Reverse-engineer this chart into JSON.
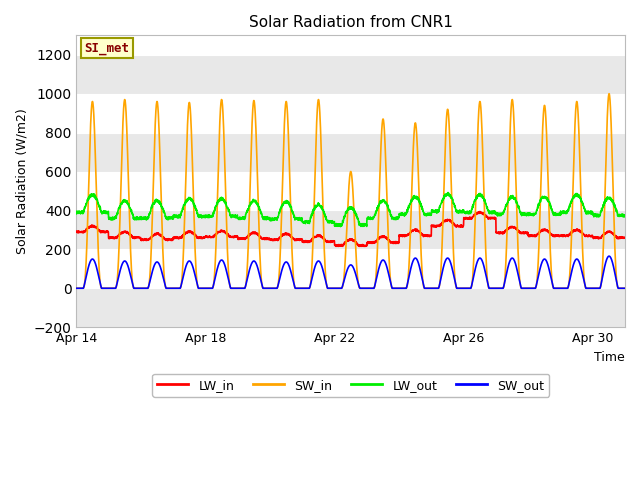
{
  "title": "Solar Radiation from CNR1",
  "xlabel": "Time",
  "ylabel": "Solar Radiation (W/m2)",
  "ylim": [
    -200,
    1300
  ],
  "yticks": [
    -200,
    0,
    200,
    400,
    600,
    800,
    1000,
    1200
  ],
  "x_tick_labels": [
    "Apr 14",
    "Apr 18",
    "Apr 22",
    "Apr 26",
    "Apr 30"
  ],
  "x_tick_positions": [
    0,
    4,
    8,
    12,
    16
  ],
  "colors": {
    "LW_in": "#ff0000",
    "SW_in": "#ffa500",
    "LW_out": "#00ee00",
    "SW_out": "#0000ff"
  },
  "fig_bg": "#ffffff",
  "plot_bg": "#ffffff",
  "band_color": "#e8e8e8",
  "grid_color": "#cccccc",
  "annotation_text": "SI_met",
  "annotation_bg": "#ffffcc",
  "annotation_border": "#999900",
  "annotation_text_color": "#880000",
  "n_days": 17,
  "samples_per_day": 144
}
